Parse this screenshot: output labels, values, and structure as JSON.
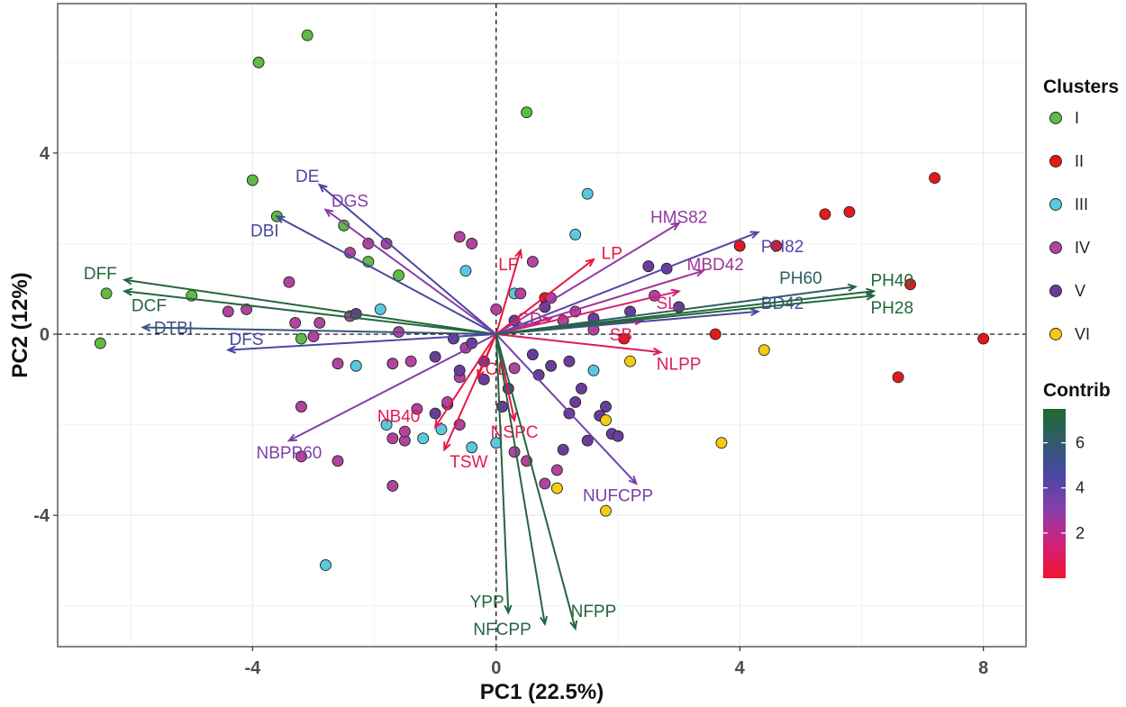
{
  "chart_data": {
    "type": "scatter",
    "subtype": "pca-biplot",
    "xlabel": "PC1 (22.5%)",
    "ylabel": "PC2 (12%)",
    "xlim": [
      -7.2,
      8.7
    ],
    "ylim": [
      -6.9,
      7.3
    ],
    "xticks": [
      -4,
      0,
      4,
      8
    ],
    "yticks": [
      -4,
      0,
      4
    ],
    "xtick_labels": [
      "-4",
      "0",
      "4",
      "8"
    ],
    "ytick_labels": [
      "-4",
      "0",
      "4"
    ],
    "grid": true,
    "reference_lines": {
      "x": 0,
      "y": 0,
      "style": "dashed"
    },
    "legend": {
      "position": "right",
      "clusters_title": "Clusters",
      "clusters": [
        {
          "name": "I",
          "color": "#5DBB46"
        },
        {
          "name": "II",
          "color": "#E31A1C"
        },
        {
          "name": "III",
          "color": "#5BC8DE"
        },
        {
          "name": "IV",
          "color": "#B1449E"
        },
        {
          "name": "V",
          "color": "#6A3D9A"
        },
        {
          "name": "VI",
          "color": "#F3CC14"
        }
      ],
      "contrib_title": "Contrib",
      "contrib_ticks": [
        2,
        4,
        6
      ],
      "contrib_tick_labels": [
        "2",
        "4",
        "6"
      ],
      "contrib_range": [
        0,
        7.5
      ],
      "contrib_gradient": [
        "#F0142F",
        "#D1207A",
        "#8A3EA8",
        "#4B46A6",
        "#325A6F",
        "#1E6B2E"
      ]
    },
    "series": [
      {
        "name": "I",
        "points": [
          [
            -3.1,
            6.6
          ],
          [
            -3.9,
            6.0
          ],
          [
            0.5,
            4.9
          ],
          [
            -4.0,
            3.4
          ],
          [
            -3.6,
            2.6
          ],
          [
            -2.5,
            2.4
          ],
          [
            -2.1,
            1.6
          ],
          [
            -1.6,
            1.3
          ],
          [
            -5.0,
            0.85
          ],
          [
            -6.4,
            0.9
          ],
          [
            -6.5,
            -0.2
          ],
          [
            -3.2,
            -0.1
          ]
        ]
      },
      {
        "name": "II",
        "points": [
          [
            7.2,
            3.45
          ],
          [
            5.8,
            2.7
          ],
          [
            5.4,
            2.65
          ],
          [
            4.0,
            1.95
          ],
          [
            4.6,
            1.95
          ],
          [
            6.8,
            1.1
          ],
          [
            3.6,
            0.0
          ],
          [
            8.0,
            -0.1
          ],
          [
            6.6,
            -0.95
          ],
          [
            0.8,
            0.8
          ],
          [
            2.1,
            -0.1
          ]
        ]
      },
      {
        "name": "III",
        "points": [
          [
            1.5,
            3.1
          ],
          [
            1.3,
            2.2
          ],
          [
            -0.5,
            1.4
          ],
          [
            0.3,
            0.9
          ],
          [
            -1.9,
            0.55
          ],
          [
            -2.3,
            -0.7
          ],
          [
            1.6,
            -0.8
          ],
          [
            -1.8,
            -2.0
          ],
          [
            -1.2,
            -2.3
          ],
          [
            -0.9,
            -2.1
          ],
          [
            -0.4,
            -2.5
          ],
          [
            0.0,
            -2.4
          ],
          [
            -2.8,
            -5.1
          ]
        ]
      },
      {
        "name": "IV",
        "points": [
          [
            -3.4,
            1.15
          ],
          [
            -2.4,
            1.8
          ],
          [
            -2.1,
            2.0
          ],
          [
            -1.8,
            2.0
          ],
          [
            -0.6,
            2.15
          ],
          [
            -0.4,
            2.0
          ],
          [
            0.6,
            1.6
          ],
          [
            0.4,
            0.9
          ],
          [
            0.9,
            0.8
          ],
          [
            -4.4,
            0.5
          ],
          [
            -3.3,
            0.25
          ],
          [
            -2.9,
            0.25
          ],
          [
            -3.0,
            -0.05
          ],
          [
            -2.4,
            0.4
          ],
          [
            -1.6,
            0.05
          ],
          [
            -1.7,
            -0.65
          ],
          [
            -2.6,
            -0.65
          ],
          [
            -1.4,
            -0.6
          ],
          [
            -0.5,
            -0.3
          ],
          [
            0.3,
            -0.75
          ],
          [
            -0.6,
            -0.95
          ],
          [
            -3.2,
            -1.6
          ],
          [
            -1.3,
            -1.65
          ],
          [
            -0.8,
            -1.55
          ],
          [
            -1.5,
            -2.35
          ],
          [
            -1.7,
            -2.3
          ],
          [
            -1.5,
            -2.15
          ],
          [
            -0.6,
            -2.0
          ],
          [
            -2.6,
            -2.8
          ],
          [
            -3.2,
            -2.7
          ],
          [
            -1.7,
            -3.35
          ],
          [
            0.3,
            -2.6
          ],
          [
            0.5,
            -2.8
          ],
          [
            1.0,
            -3.0
          ],
          [
            0.8,
            -3.3
          ],
          [
            -0.8,
            -1.5
          ],
          [
            1.6,
            0.1
          ],
          [
            1.3,
            0.5
          ],
          [
            -4.1,
            0.55
          ],
          [
            0.0,
            0.55
          ],
          [
            2.6,
            0.85
          ],
          [
            1.1,
            0.3
          ]
        ]
      },
      {
        "name": "V",
        "points": [
          [
            2.5,
            1.5
          ],
          [
            2.8,
            1.45
          ],
          [
            3.0,
            0.6
          ],
          [
            0.8,
            0.6
          ],
          [
            0.3,
            0.3
          ],
          [
            1.6,
            0.35
          ],
          [
            -2.3,
            0.45
          ],
          [
            -0.7,
            -0.1
          ],
          [
            -0.4,
            -0.2
          ],
          [
            -1.0,
            -0.5
          ],
          [
            -0.2,
            -0.6
          ],
          [
            0.6,
            -0.45
          ],
          [
            0.2,
            -1.2
          ],
          [
            0.1,
            -1.6
          ],
          [
            0.7,
            -0.9
          ],
          [
            1.2,
            -0.6
          ],
          [
            1.4,
            -1.2
          ],
          [
            1.3,
            -1.5
          ],
          [
            1.2,
            -1.75
          ],
          [
            1.7,
            -1.8
          ],
          [
            1.8,
            -1.6
          ],
          [
            1.9,
            -2.2
          ],
          [
            2.0,
            -2.25
          ],
          [
            1.5,
            -2.35
          ],
          [
            1.1,
            -2.55
          ],
          [
            -0.6,
            -0.8
          ],
          [
            -0.2,
            -1.0
          ],
          [
            -1.0,
            -1.75
          ],
          [
            0.9,
            -0.7
          ],
          [
            2.2,
            0.5
          ]
        ]
      },
      {
        "name": "VI",
        "points": [
          [
            4.4,
            -0.35
          ],
          [
            2.2,
            -0.6
          ],
          [
            1.8,
            -1.9
          ],
          [
            3.7,
            -2.4
          ],
          [
            1.0,
            -3.4
          ],
          [
            1.8,
            -3.9
          ]
        ]
      }
    ],
    "vectors": [
      {
        "name": "DFF",
        "end": [
          -6.1,
          1.2
        ],
        "contrib": 7.2,
        "label_at": [
          -6.5,
          1.35
        ]
      },
      {
        "name": "DCF",
        "end": [
          -6.1,
          0.95
        ],
        "contrib": 7.1,
        "label_at": [
          -5.7,
          0.65
        ]
      },
      {
        "name": "DTBI",
        "end": [
          -5.8,
          0.15
        ],
        "contrib": 5.6,
        "label_at": [
          -5.3,
          0.15
        ]
      },
      {
        "name": "DFS",
        "end": [
          -4.4,
          -0.35
        ],
        "contrib": 4.6,
        "label_at": [
          -4.1,
          -0.1
        ]
      },
      {
        "name": "DBI",
        "end": [
          -3.6,
          2.6
        ],
        "contrib": 4.8,
        "label_at": [
          -3.8,
          2.3
        ]
      },
      {
        "name": "DE",
        "end": [
          -2.9,
          3.3
        ],
        "contrib": 4.5,
        "label_at": [
          -3.1,
          3.5
        ]
      },
      {
        "name": "DGS",
        "end": [
          -2.8,
          2.75
        ],
        "contrib": 3.0,
        "label_at": [
          -2.4,
          2.95
        ]
      },
      {
        "name": "NBPP60",
        "end": [
          -3.4,
          -2.35
        ],
        "contrib": 3.3,
        "label_at": [
          -3.4,
          -2.6
        ]
      },
      {
        "name": "NB40",
        "end": [
          -1.0,
          -2.05
        ],
        "contrib": 0.6,
        "label_at": [
          -1.6,
          -1.8
        ]
      },
      {
        "name": "TSW",
        "end": [
          -0.85,
          -2.55
        ],
        "contrib": 0.5,
        "label_at": [
          -0.45,
          -2.8
        ]
      },
      {
        "name": "NSPC",
        "end": [
          0.3,
          -1.9
        ],
        "contrib": 0.6,
        "label_at": [
          0.3,
          -2.15
        ]
      },
      {
        "name": "CL",
        "end": [
          -0.3,
          -0.95
        ],
        "contrib": 0.3,
        "label_at": [
          0.0,
          -0.75
        ]
      },
      {
        "name": "LF",
        "end": [
          0.4,
          1.85
        ],
        "contrib": 0.4,
        "label_at": [
          0.2,
          1.55
        ]
      },
      {
        "name": "LP",
        "end": [
          1.6,
          1.65
        ],
        "contrib": 0.3,
        "label_at": [
          1.9,
          1.8
        ]
      },
      {
        "name": "CD",
        "end": [
          0.9,
          0.35
        ],
        "contrib": 0.8,
        "label_at": [
          0.55,
          0.35
        ]
      },
      {
        "name": "SB",
        "end": [
          2.4,
          0.3
        ],
        "contrib": 0.7,
        "label_at": [
          2.05,
          0.0
        ]
      },
      {
        "name": "SL",
        "end": [
          3.0,
          0.95
        ],
        "contrib": 1.4,
        "label_at": [
          2.8,
          0.7
        ]
      },
      {
        "name": "NLPP",
        "end": [
          2.7,
          -0.4
        ],
        "contrib": 0.9,
        "label_at": [
          3.0,
          -0.65
        ]
      },
      {
        "name": "HMS82",
        "end": [
          3.0,
          2.45
        ],
        "contrib": 2.8,
        "label_at": [
          3.0,
          2.6
        ]
      },
      {
        "name": "MBD42",
        "end": [
          3.4,
          1.4
        ],
        "contrib": 2.5,
        "label_at": [
          3.6,
          1.55
        ]
      },
      {
        "name": "PH82",
        "end": [
          4.3,
          2.25
        ],
        "contrib": 4.1,
        "label_at": [
          4.7,
          1.95
        ]
      },
      {
        "name": "BD42",
        "end": [
          4.3,
          0.5
        ],
        "contrib": 4.6,
        "label_at": [
          4.7,
          0.7
        ]
      },
      {
        "name": "PH60",
        "end": [
          5.9,
          1.05
        ],
        "contrib": 6.3,
        "label_at": [
          5.0,
          1.25
        ]
      },
      {
        "name": "PH40",
        "end": [
          6.2,
          0.95
        ],
        "contrib": 7.2,
        "label_at": [
          6.5,
          1.2
        ]
      },
      {
        "name": "PH28",
        "end": [
          6.2,
          0.85
        ],
        "contrib": 7.2,
        "label_at": [
          6.5,
          0.6
        ]
      },
      {
        "name": "NUFCPP",
        "end": [
          2.3,
          -3.3
        ],
        "contrib": 3.5,
        "label_at": [
          2.0,
          -3.55
        ]
      },
      {
        "name": "YPP",
        "end": [
          0.2,
          -6.15
        ],
        "contrib": 7.0,
        "label_at": [
          -0.15,
          -5.9
        ]
      },
      {
        "name": "NFCPP",
        "end": [
          0.8,
          -6.4
        ],
        "contrib": 7.0,
        "label_at": [
          0.1,
          -6.5
        ]
      },
      {
        "name": "NFPP",
        "end": [
          1.3,
          -6.5
        ],
        "contrib": 7.1,
        "label_at": [
          1.6,
          -6.1
        ]
      }
    ]
  }
}
